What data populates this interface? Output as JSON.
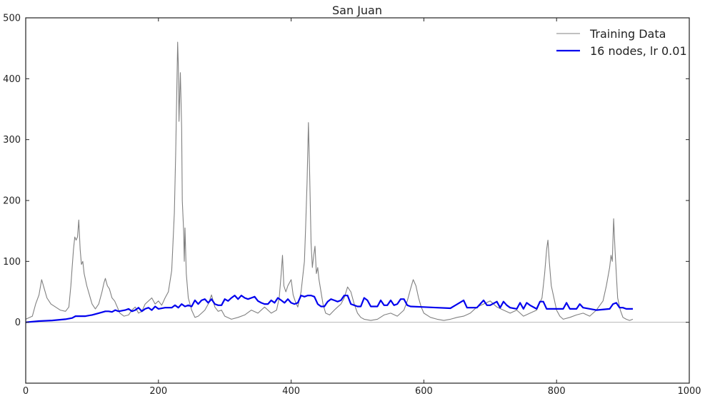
{
  "chart_data": {
    "type": "line",
    "title": "San Juan",
    "xlabel": "",
    "ylabel": "",
    "xlim": [
      0,
      1000
    ],
    "ylim": [
      -100,
      500
    ],
    "x_ticks": [
      0,
      200,
      400,
      600,
      800,
      1000
    ],
    "y_ticks": [
      0,
      100,
      200,
      300,
      400,
      500
    ],
    "zero_line": true,
    "grid": false,
    "legend": {
      "position": "top-right"
    },
    "series": [
      {
        "name": "Training Data",
        "color": "#808080",
        "points": [
          [
            0,
            5
          ],
          [
            10,
            10
          ],
          [
            15,
            30
          ],
          [
            20,
            45
          ],
          [
            24,
            70
          ],
          [
            28,
            55
          ],
          [
            32,
            40
          ],
          [
            38,
            30
          ],
          [
            45,
            25
          ],
          [
            52,
            20
          ],
          [
            60,
            18
          ],
          [
            65,
            25
          ],
          [
            68,
            60
          ],
          [
            70,
            90
          ],
          [
            72,
            120
          ],
          [
            74,
            140
          ],
          [
            76,
            135
          ],
          [
            78,
            140
          ],
          [
            80,
            168
          ],
          [
            82,
            120
          ],
          [
            84,
            95
          ],
          [
            86,
            100
          ],
          [
            88,
            80
          ],
          [
            92,
            60
          ],
          [
            96,
            45
          ],
          [
            100,
            30
          ],
          [
            105,
            22
          ],
          [
            110,
            30
          ],
          [
            115,
            50
          ],
          [
            118,
            65
          ],
          [
            120,
            72
          ],
          [
            123,
            60
          ],
          [
            126,
            55
          ],
          [
            130,
            40
          ],
          [
            134,
            35
          ],
          [
            138,
            25
          ],
          [
            142,
            15
          ],
          [
            148,
            10
          ],
          [
            155,
            12
          ],
          [
            160,
            20
          ],
          [
            165,
            25
          ],
          [
            170,
            15
          ],
          [
            175,
            18
          ],
          [
            180,
            30
          ],
          [
            185,
            35
          ],
          [
            190,
            40
          ],
          [
            195,
            30
          ],
          [
            200,
            35
          ],
          [
            205,
            28
          ],
          [
            210,
            40
          ],
          [
            215,
            50
          ],
          [
            220,
            85
          ],
          [
            224,
            180
          ],
          [
            226,
            280
          ],
          [
            228,
            400
          ],
          [
            229,
            460
          ],
          [
            230,
            420
          ],
          [
            231,
            330
          ],
          [
            233,
            410
          ],
          [
            235,
            320
          ],
          [
            236,
            200
          ],
          [
            238,
            150
          ],
          [
            239,
            100
          ],
          [
            240,
            155
          ],
          [
            242,
            80
          ],
          [
            245,
            40
          ],
          [
            250,
            20
          ],
          [
            255,
            8
          ],
          [
            260,
            10
          ],
          [
            265,
            15
          ],
          [
            270,
            20
          ],
          [
            275,
            30
          ],
          [
            280,
            45
          ],
          [
            285,
            25
          ],
          [
            290,
            18
          ],
          [
            295,
            20
          ],
          [
            300,
            10
          ],
          [
            310,
            5
          ],
          [
            320,
            8
          ],
          [
            330,
            12
          ],
          [
            340,
            20
          ],
          [
            350,
            15
          ],
          [
            360,
            25
          ],
          [
            370,
            15
          ],
          [
            378,
            20
          ],
          [
            382,
            40
          ],
          [
            385,
            80
          ],
          [
            387,
            110
          ],
          [
            389,
            60
          ],
          [
            392,
            50
          ],
          [
            395,
            60
          ],
          [
            400,
            70
          ],
          [
            403,
            45
          ],
          [
            406,
            35
          ],
          [
            410,
            25
          ],
          [
            415,
            50
          ],
          [
            418,
            80
          ],
          [
            420,
            100
          ],
          [
            422,
            160
          ],
          [
            424,
            230
          ],
          [
            426,
            328
          ],
          [
            428,
            240
          ],
          [
            430,
            130
          ],
          [
            432,
            90
          ],
          [
            434,
            110
          ],
          [
            436,
            125
          ],
          [
            438,
            80
          ],
          [
            440,
            90
          ],
          [
            442,
            70
          ],
          [
            445,
            50
          ],
          [
            448,
            30
          ],
          [
            452,
            15
          ],
          [
            458,
            12
          ],
          [
            465,
            20
          ],
          [
            470,
            25
          ],
          [
            475,
            30
          ],
          [
            480,
            40
          ],
          [
            485,
            58
          ],
          [
            490,
            50
          ],
          [
            495,
            30
          ],
          [
            500,
            15
          ],
          [
            505,
            8
          ],
          [
            510,
            5
          ],
          [
            520,
            3
          ],
          [
            530,
            5
          ],
          [
            540,
            12
          ],
          [
            550,
            15
          ],
          [
            560,
            10
          ],
          [
            570,
            20
          ],
          [
            575,
            35
          ],
          [
            580,
            55
          ],
          [
            584,
            70
          ],
          [
            588,
            60
          ],
          [
            592,
            40
          ],
          [
            596,
            25
          ],
          [
            600,
            15
          ],
          [
            610,
            8
          ],
          [
            620,
            5
          ],
          [
            630,
            3
          ],
          [
            640,
            5
          ],
          [
            650,
            8
          ],
          [
            660,
            10
          ],
          [
            670,
            15
          ],
          [
            680,
            25
          ],
          [
            690,
            30
          ],
          [
            700,
            35
          ],
          [
            710,
            25
          ],
          [
            720,
            20
          ],
          [
            730,
            15
          ],
          [
            740,
            20
          ],
          [
            750,
            10
          ],
          [
            760,
            15
          ],
          [
            770,
            20
          ],
          [
            778,
            40
          ],
          [
            782,
            80
          ],
          [
            785,
            120
          ],
          [
            787,
            135
          ],
          [
            789,
            100
          ],
          [
            792,
            60
          ],
          [
            796,
            40
          ],
          [
            800,
            20
          ],
          [
            805,
            10
          ],
          [
            810,
            5
          ],
          [
            820,
            8
          ],
          [
            830,
            12
          ],
          [
            840,
            15
          ],
          [
            850,
            10
          ],
          [
            860,
            20
          ],
          [
            870,
            35
          ],
          [
            875,
            60
          ],
          [
            880,
            90
          ],
          [
            882,
            110
          ],
          [
            884,
            100
          ],
          [
            886,
            170
          ],
          [
            888,
            120
          ],
          [
            890,
            80
          ],
          [
            892,
            40
          ],
          [
            896,
            20
          ],
          [
            900,
            8
          ],
          [
            905,
            5
          ],
          [
            910,
            3
          ],
          [
            915,
            5
          ]
        ]
      },
      {
        "name": "16 nodes, lr 0.01",
        "color": "#0000ee",
        "points": [
          [
            0,
            0
          ],
          [
            20,
            2
          ],
          [
            40,
            3
          ],
          [
            60,
            5
          ],
          [
            70,
            7
          ],
          [
            75,
            10
          ],
          [
            80,
            10
          ],
          [
            90,
            10
          ],
          [
            100,
            12
          ],
          [
            110,
            15
          ],
          [
            120,
            18
          ],
          [
            125,
            18
          ],
          [
            130,
            17
          ],
          [
            135,
            20
          ],
          [
            140,
            18
          ],
          [
            150,
            20
          ],
          [
            155,
            22
          ],
          [
            160,
            18
          ],
          [
            165,
            20
          ],
          [
            170,
            24
          ],
          [
            175,
            18
          ],
          [
            180,
            22
          ],
          [
            185,
            24
          ],
          [
            190,
            20
          ],
          [
            195,
            26
          ],
          [
            200,
            22
          ],
          [
            210,
            24
          ],
          [
            220,
            24
          ],
          [
            225,
            28
          ],
          [
            230,
            24
          ],
          [
            235,
            30
          ],
          [
            240,
            26
          ],
          [
            245,
            28
          ],
          [
            250,
            26
          ],
          [
            255,
            36
          ],
          [
            260,
            30
          ],
          [
            265,
            36
          ],
          [
            270,
            38
          ],
          [
            275,
            32
          ],
          [
            280,
            38
          ],
          [
            285,
            30
          ],
          [
            290,
            28
          ],
          [
            295,
            28
          ],
          [
            300,
            38
          ],
          [
            305,
            35
          ],
          [
            310,
            40
          ],
          [
            315,
            44
          ],
          [
            320,
            38
          ],
          [
            325,
            44
          ],
          [
            330,
            40
          ],
          [
            335,
            38
          ],
          [
            340,
            40
          ],
          [
            345,
            42
          ],
          [
            350,
            35
          ],
          [
            355,
            32
          ],
          [
            360,
            30
          ],
          [
            365,
            30
          ],
          [
            370,
            36
          ],
          [
            375,
            32
          ],
          [
            380,
            40
          ],
          [
            385,
            36
          ],
          [
            390,
            32
          ],
          [
            395,
            38
          ],
          [
            400,
            32
          ],
          [
            405,
            30
          ],
          [
            410,
            32
          ],
          [
            415,
            44
          ],
          [
            420,
            42
          ],
          [
            425,
            44
          ],
          [
            430,
            44
          ],
          [
            435,
            42
          ],
          [
            440,
            30
          ],
          [
            445,
            26
          ],
          [
            450,
            26
          ],
          [
            455,
            34
          ],
          [
            460,
            38
          ],
          [
            465,
            36
          ],
          [
            470,
            34
          ],
          [
            475,
            36
          ],
          [
            480,
            44
          ],
          [
            485,
            44
          ],
          [
            490,
            30
          ],
          [
            495,
            28
          ],
          [
            500,
            26
          ],
          [
            505,
            26
          ],
          [
            510,
            40
          ],
          [
            515,
            36
          ],
          [
            520,
            26
          ],
          [
            525,
            26
          ],
          [
            530,
            26
          ],
          [
            535,
            36
          ],
          [
            540,
            28
          ],
          [
            545,
            28
          ],
          [
            550,
            36
          ],
          [
            555,
            28
          ],
          [
            560,
            30
          ],
          [
            565,
            38
          ],
          [
            570,
            38
          ],
          [
            575,
            28
          ],
          [
            580,
            26
          ],
          [
            600,
            25
          ],
          [
            620,
            24
          ],
          [
            640,
            23
          ],
          [
            660,
            36
          ],
          [
            665,
            24
          ],
          [
            680,
            24
          ],
          [
            690,
            36
          ],
          [
            695,
            28
          ],
          [
            700,
            28
          ],
          [
            710,
            34
          ],
          [
            715,
            24
          ],
          [
            720,
            34
          ],
          [
            725,
            28
          ],
          [
            730,
            24
          ],
          [
            740,
            22
          ],
          [
            745,
            32
          ],
          [
            750,
            22
          ],
          [
            755,
            32
          ],
          [
            760,
            28
          ],
          [
            770,
            22
          ],
          [
            775,
            34
          ],
          [
            780,
            34
          ],
          [
            785,
            22
          ],
          [
            800,
            22
          ],
          [
            810,
            22
          ],
          [
            815,
            32
          ],
          [
            820,
            22
          ],
          [
            830,
            22
          ],
          [
            835,
            30
          ],
          [
            840,
            24
          ],
          [
            860,
            20
          ],
          [
            880,
            22
          ],
          [
            885,
            30
          ],
          [
            890,
            32
          ],
          [
            895,
            24
          ],
          [
            900,
            24
          ],
          [
            905,
            22
          ],
          [
            915,
            22
          ]
        ]
      }
    ]
  }
}
